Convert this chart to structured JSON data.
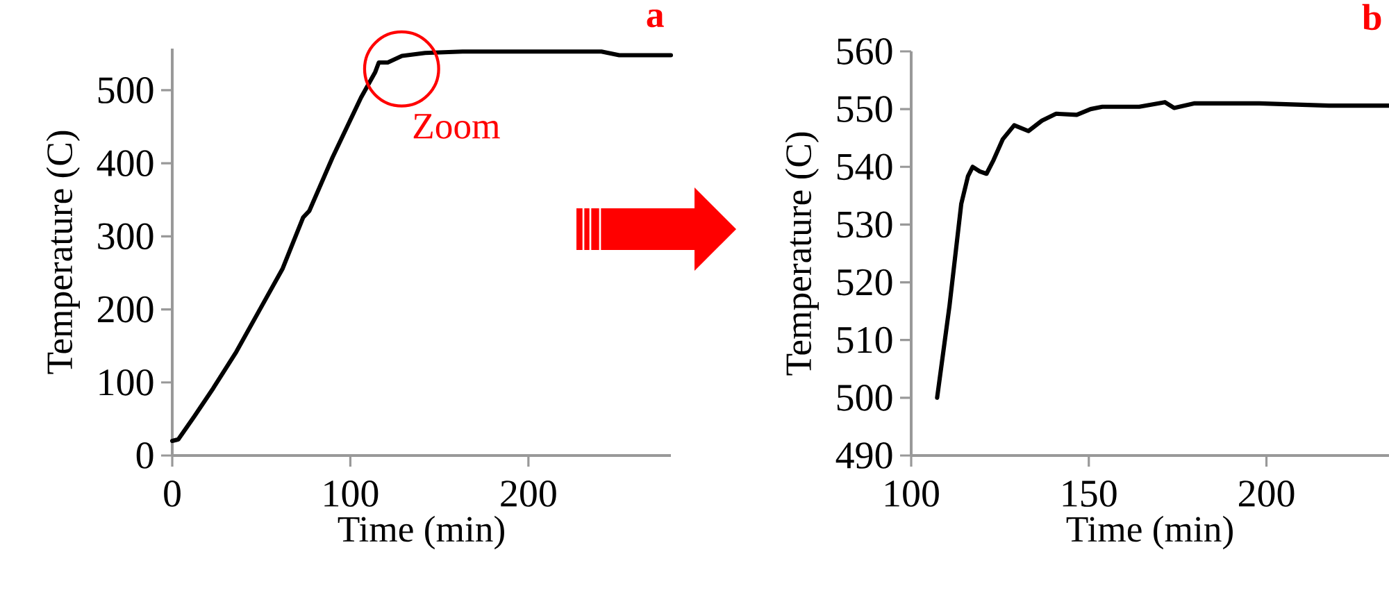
{
  "chart_data": [
    {
      "type": "line",
      "title": "a",
      "xlabel": "Time (min)",
      "ylabel": "Temperature (C)",
      "color": "#000000",
      "x": [
        0,
        3.4,
        12.5,
        23,
        36,
        49,
        62,
        73.5,
        77,
        90,
        106,
        114,
        116,
        121,
        129,
        142,
        163,
        241,
        251,
        280
      ],
      "values": [
        20,
        22,
        54,
        92,
        142,
        199,
        256,
        326,
        335,
        408,
        490,
        525,
        538,
        538,
        547,
        551,
        553,
        553,
        548,
        548
      ],
      "xlim": [
        0,
        280
      ],
      "ylim": [
        0,
        557
      ],
      "xticks": [
        0,
        100,
        200
      ],
      "yticks": [
        0,
        100,
        200,
        300,
        400,
        500
      ],
      "annotations": [
        "Zoom"
      ]
    },
    {
      "type": "line",
      "title": "b",
      "xlabel": "Time (min)",
      "ylabel": "Temperature (C)",
      "color": "#000000",
      "x": [
        107.3,
        110.8,
        114.1,
        116,
        117.3,
        119.3,
        121.2,
        123.2,
        125.8,
        129,
        133,
        136.8,
        140.8,
        146.6,
        150.5,
        153.8,
        164.2,
        171.4,
        174,
        179.8,
        198,
        217.6,
        234.5
      ],
      "values": [
        500,
        516,
        533.6,
        538.4,
        540,
        539.2,
        538.8,
        541.2,
        544.8,
        547.2,
        546.2,
        548,
        549.2,
        549,
        550,
        550.4,
        550.4,
        551.2,
        550.2,
        551,
        551,
        550.6,
        550.6
      ],
      "xlim": [
        100,
        234.5
      ],
      "ylim": [
        490,
        560
      ],
      "xticks": [
        100,
        150,
        200
      ],
      "yticks": [
        490,
        500,
        510,
        520,
        530,
        540,
        550,
        560
      ]
    }
  ]
}
